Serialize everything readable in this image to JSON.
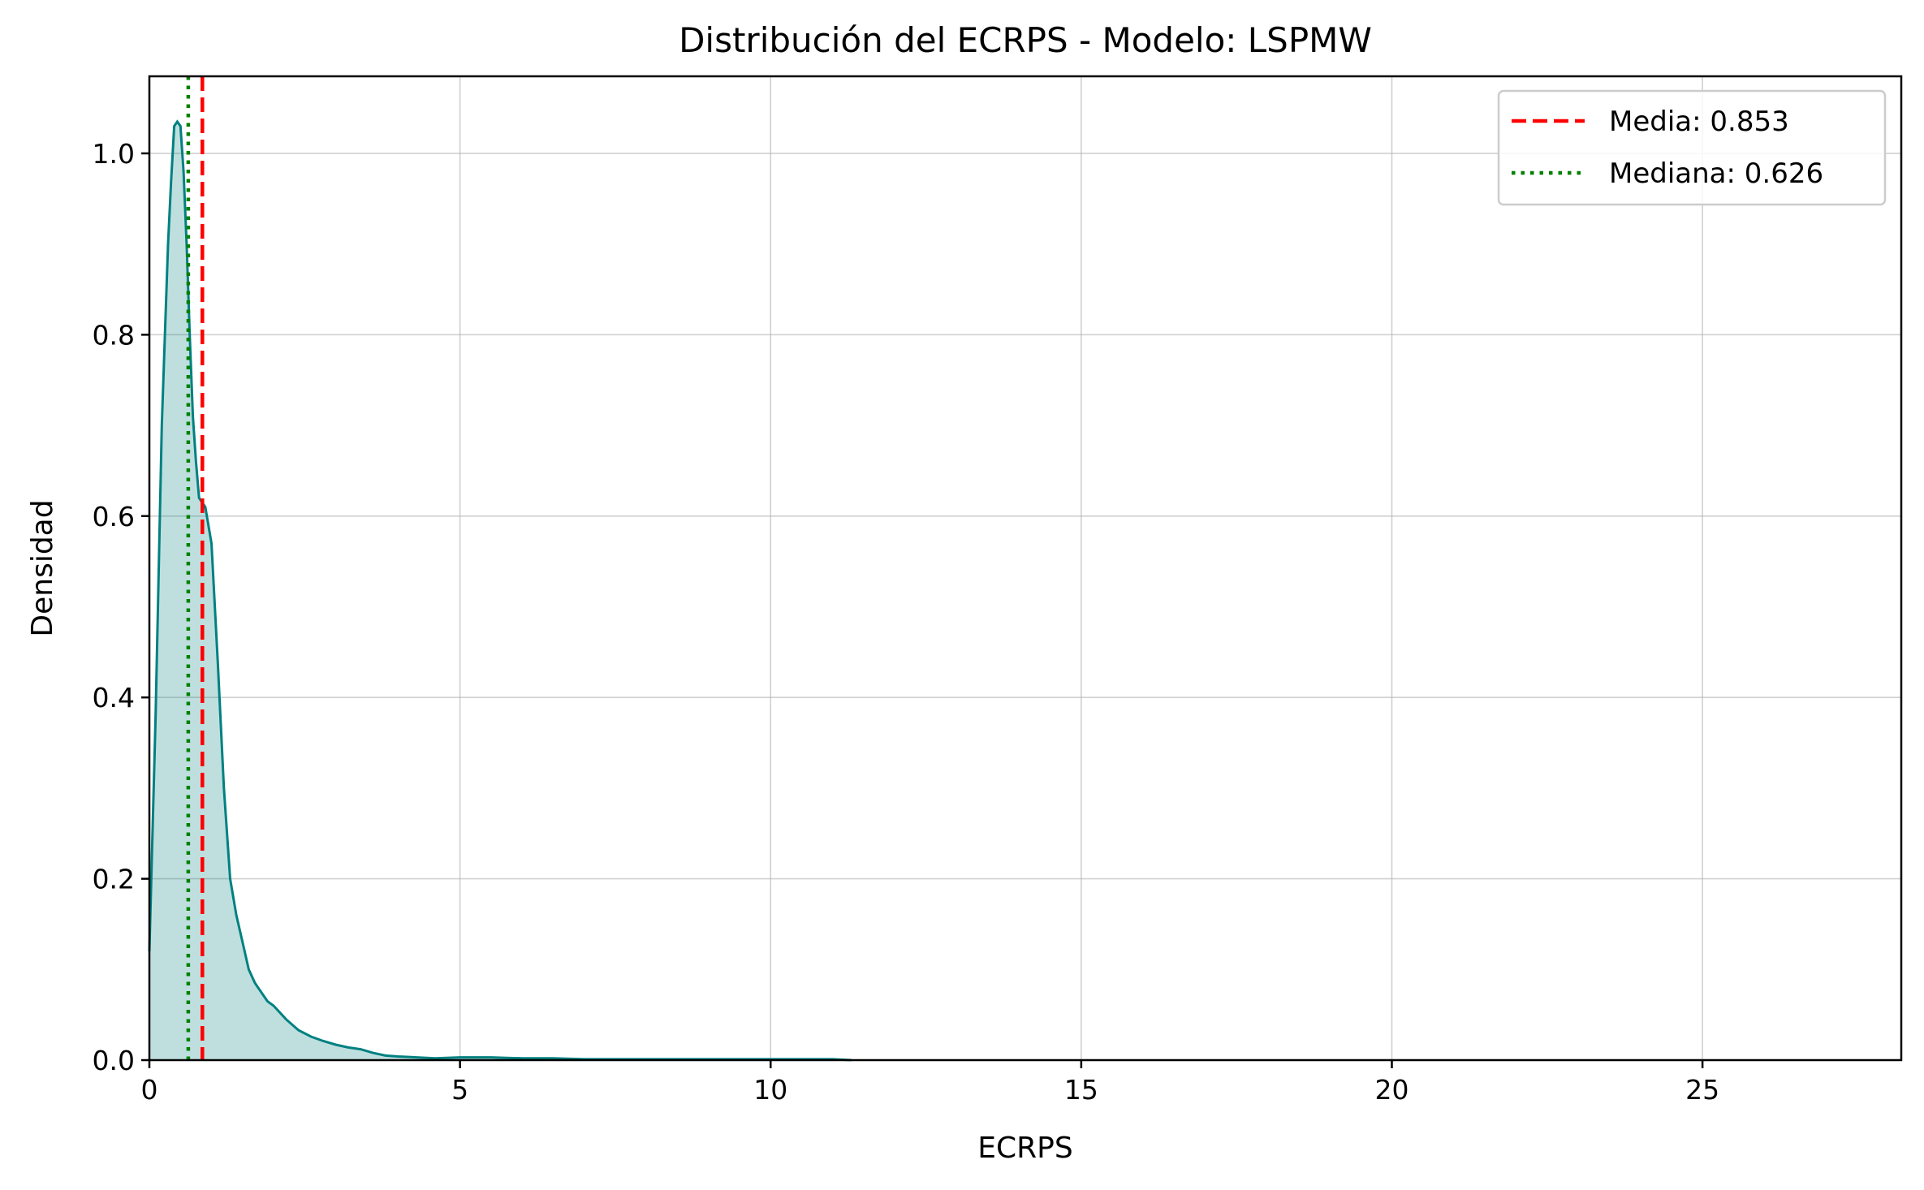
{
  "chart_data": {
    "type": "area",
    "title": "Distribución del ECRPS - Modelo: LSPMW",
    "xlabel": "ECRPS",
    "ylabel": "Densidad",
    "xlim": [
      0,
      28.2
    ],
    "ylim": [
      0,
      1.085
    ],
    "xticks": [
      0,
      5,
      10,
      15,
      20,
      25
    ],
    "xtick_labels": [
      "0",
      "5",
      "10",
      "15",
      "20",
      "25"
    ],
    "yticks": [
      0.0,
      0.2,
      0.4,
      0.6,
      0.8,
      1.0
    ],
    "ytick_labels": [
      "0.0",
      "0.2",
      "0.4",
      "0.6",
      "0.8",
      "1.0"
    ],
    "grid": true,
    "legend_position": "top-right",
    "series": [
      {
        "kind": "kde",
        "color": "#008080",
        "fill": "#008080",
        "fill_opacity": 0.25,
        "x": [
          0.0,
          0.1,
          0.2,
          0.3,
          0.35,
          0.4,
          0.45,
          0.5,
          0.55,
          0.6,
          0.65,
          0.7,
          0.75,
          0.8,
          0.85,
          0.9,
          1.0,
          1.1,
          1.2,
          1.3,
          1.4,
          1.5,
          1.6,
          1.7,
          1.8,
          1.9,
          2.0,
          2.2,
          2.4,
          2.6,
          2.8,
          3.0,
          3.2,
          3.4,
          3.6,
          3.8,
          4.0,
          4.3,
          4.6,
          5.0,
          5.5,
          6.0,
          6.5,
          7.0,
          8.0,
          9.0,
          10.0,
          10.5,
          11.0,
          11.3
        ],
        "y": [
          0.12,
          0.38,
          0.7,
          0.9,
          0.97,
          1.03,
          1.035,
          1.03,
          0.98,
          0.9,
          0.8,
          0.71,
          0.66,
          0.62,
          0.615,
          0.61,
          0.57,
          0.44,
          0.3,
          0.2,
          0.16,
          0.13,
          0.1,
          0.085,
          0.075,
          0.065,
          0.06,
          0.045,
          0.033,
          0.026,
          0.021,
          0.017,
          0.014,
          0.012,
          0.008,
          0.005,
          0.004,
          0.003,
          0.002,
          0.003,
          0.003,
          0.002,
          0.002,
          0.001,
          0.001,
          0.001,
          0.001,
          0.001,
          0.001,
          0.0
        ]
      }
    ],
    "reference_lines": [
      {
        "name": "Media: 0.853",
        "x": 0.853,
        "color": "#ff0000",
        "style": "dashed"
      },
      {
        "name": "Mediana: 0.626",
        "x": 0.626,
        "color": "#008000",
        "style": "dotted"
      }
    ]
  }
}
